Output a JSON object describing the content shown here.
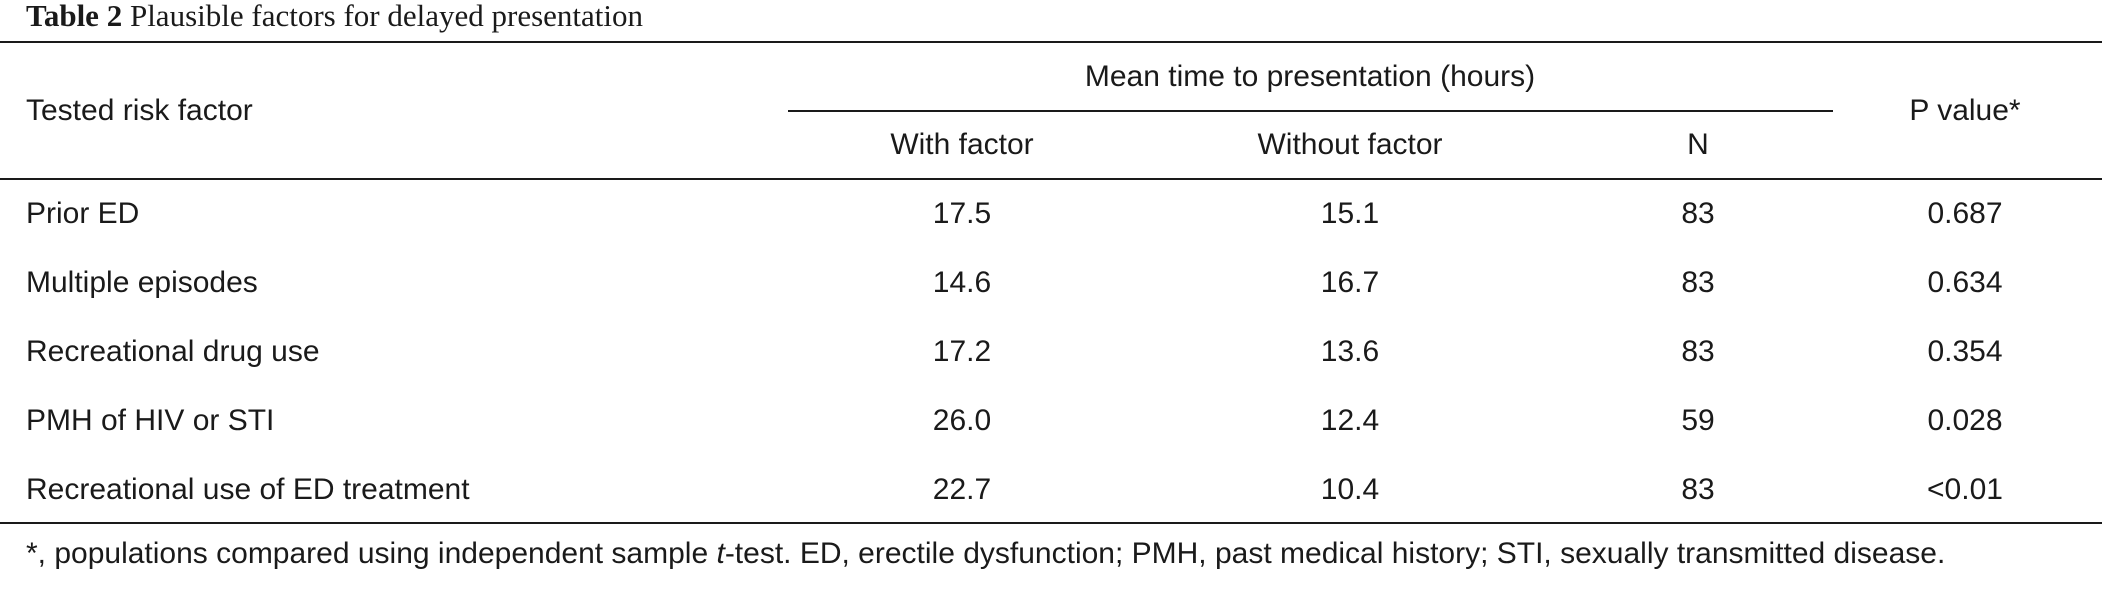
{
  "caption": {
    "label": "Table 2",
    "title": "Plausible factors for delayed presentation"
  },
  "header": {
    "risk_factor": "Tested risk factor",
    "group": "Mean time to presentation (hours)",
    "with_factor": "With factor",
    "without_factor": "Without factor",
    "n": "N",
    "p_value": "P value*"
  },
  "rows": [
    {
      "factor": "Prior ED",
      "with": "17.5",
      "without": "15.1",
      "n": "83",
      "p": "0.687"
    },
    {
      "factor": "Multiple episodes",
      "with": "14.6",
      "without": "16.7",
      "n": "83",
      "p": "0.634"
    },
    {
      "factor": "Recreational drug use",
      "with": "17.2",
      "without": "13.6",
      "n": "83",
      "p": "0.354"
    },
    {
      "factor": "PMH of HIV or STI",
      "with": "26.0",
      "without": "12.4",
      "n": "59",
      "p": "0.028"
    },
    {
      "factor": "Recreational use of ED treatment",
      "with": "22.7",
      "without": "10.4",
      "n": "83",
      "p": "<0.01"
    }
  ],
  "footnote": {
    "before_italic": "*, populations compared using independent sample ",
    "italic": "t",
    "after_italic": "-test. ED, erectile dysfunction; PMH, past medical history; STI, sexually transmitted disease."
  }
}
